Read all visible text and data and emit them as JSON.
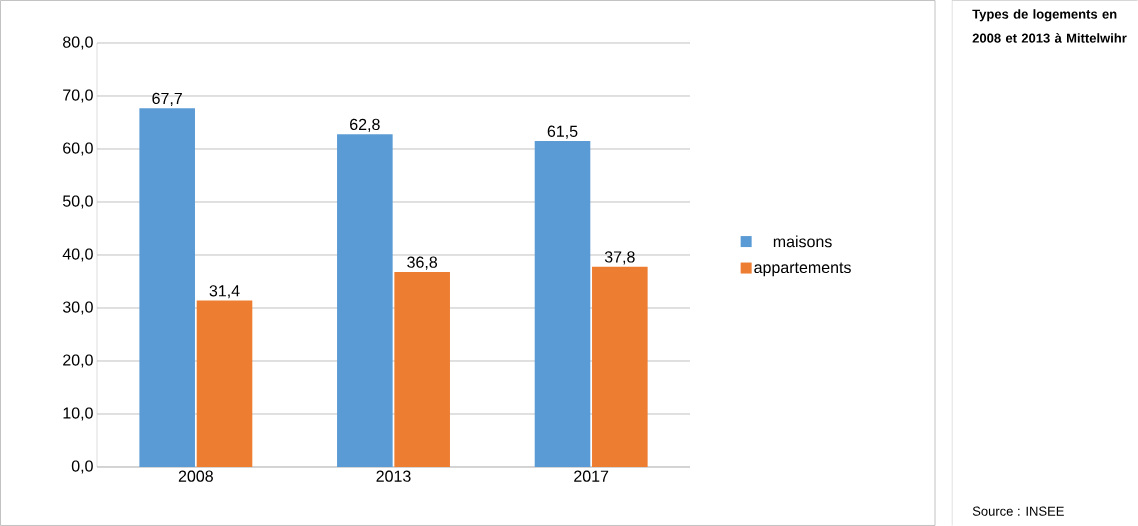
{
  "chart_data": {
    "type": "bar",
    "title": "Types de logements en 2008 et 2013 à Mittelwihr",
    "categories": [
      "2008",
      "2013",
      "2017"
    ],
    "series": [
      {
        "name": "maisons",
        "color": "#5b9bd5",
        "values": [
          67.7,
          62.8,
          61.5
        ],
        "value_labels": [
          "67,7",
          "62,8",
          "61,5"
        ]
      },
      {
        "name": "appartements",
        "color": "#ed7d31",
        "values": [
          31.4,
          36.8,
          37.8
        ],
        "value_labels": [
          "31,4",
          "36,8",
          "37,8"
        ]
      }
    ],
    "ylim": [
      0,
      80
    ],
    "yticks": [
      {
        "value": 0,
        "label": "0,0"
      },
      {
        "value": 10,
        "label": "10,0"
      },
      {
        "value": 20,
        "label": "20,0"
      },
      {
        "value": 30,
        "label": "30,0"
      },
      {
        "value": 40,
        "label": "40,0"
      },
      {
        "value": 50,
        "label": "50,0"
      },
      {
        "value": 60,
        "label": "60,0"
      },
      {
        "value": 70,
        "label": "70,0"
      },
      {
        "value": 80,
        "label": "80,0"
      }
    ],
    "grid": "y",
    "legend": "right",
    "annotations": [
      "Source : INSEE"
    ]
  }
}
